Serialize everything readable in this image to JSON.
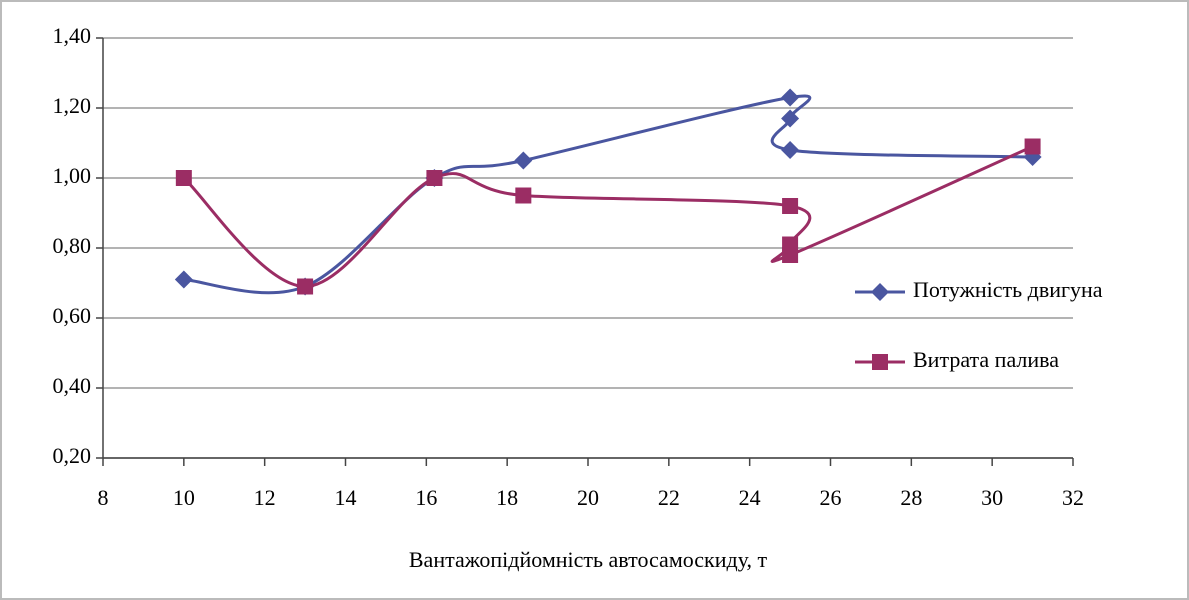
{
  "chart_data": {
    "type": "scatter-smooth",
    "x_label": "Вантажопідйомність автосамоскиду, т",
    "xlim": [
      8,
      32
    ],
    "xticks": [
      8,
      10,
      12,
      14,
      16,
      18,
      20,
      22,
      24,
      26,
      28,
      30,
      32
    ],
    "ylim": [
      0.2,
      1.4
    ],
    "yticks": [
      {
        "value": 0.2,
        "label": "0,20"
      },
      {
        "value": 0.4,
        "label": "0,40"
      },
      {
        "value": 0.6,
        "label": "0,60"
      },
      {
        "value": 0.8,
        "label": "0,80"
      },
      {
        "value": 1.0,
        "label": "1,00"
      },
      {
        "value": 1.2,
        "label": "1,20"
      },
      {
        "value": 1.4,
        "label": "1,40"
      }
    ],
    "grid": true,
    "legend": "right",
    "series": [
      {
        "name": "Потужність двигуна",
        "color": "#4a56a0",
        "marker": "diamond",
        "x": [
          10,
          13,
          16.2,
          18.4,
          25,
          25,
          25,
          31
        ],
        "values": [
          0.71,
          0.69,
          1.0,
          1.05,
          1.23,
          1.17,
          1.08,
          1.06
        ]
      },
      {
        "name": "Витрата палива",
        "color": "#9b2d64",
        "marker": "square",
        "x": [
          10,
          13,
          16.2,
          18.4,
          25,
          25,
          25,
          31
        ],
        "values": [
          1.0,
          0.69,
          1.0,
          0.95,
          0.92,
          0.81,
          0.78,
          1.09
        ]
      }
    ]
  }
}
